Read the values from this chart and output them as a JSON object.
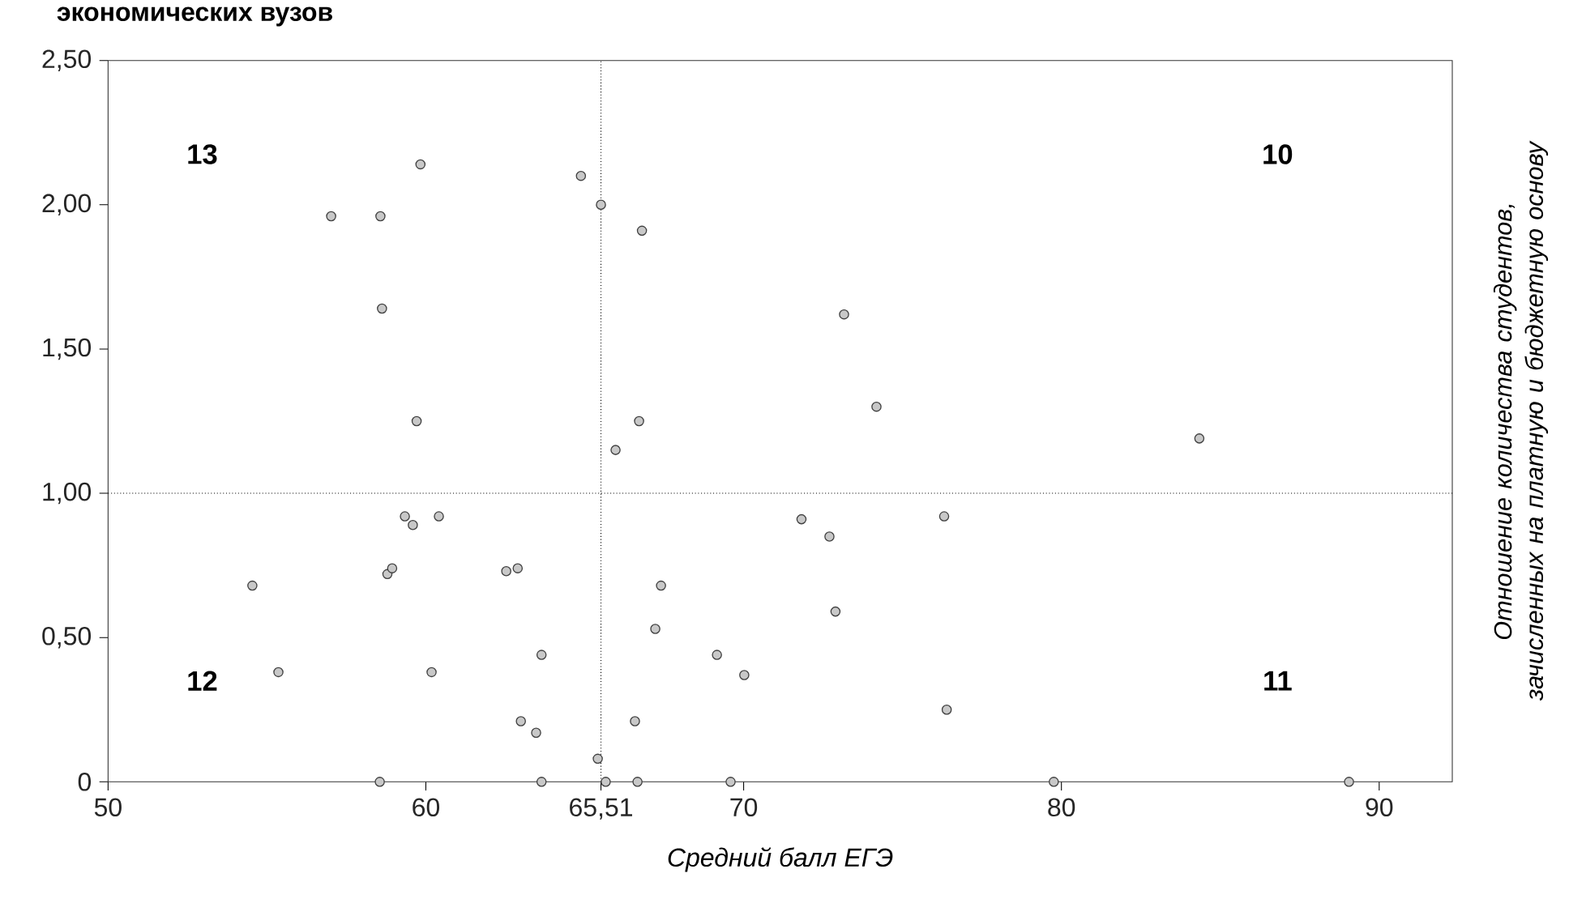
{
  "chart_data": {
    "type": "scatter",
    "title": "экономических вузов",
    "xlabel": "Средний балл ЕГЭ",
    "ylabel": "Отношение количества студентов, зачисленных на платную и бюджетную основу",
    "xlim": [
      50,
      92.3
    ],
    "ylim": [
      0,
      2.5
    ],
    "xticks": [
      50,
      60,
      {
        "value": 65.51,
        "label": "65,51"
      },
      70,
      80,
      90
    ],
    "yticks": [
      0,
      {
        "value": 0.5,
        "label": "0,50"
      },
      {
        "value": 1,
        "label": "1,00"
      },
      {
        "value": 1.5,
        "label": "1,50"
      },
      {
        "value": 2,
        "label": "2,00"
      },
      {
        "value": 2.5,
        "label": "2,50"
      }
    ],
    "marker": "circle",
    "grid": false,
    "ref_lines": [
      {
        "axis": "x",
        "value": 65.51,
        "line_style": "dotted"
      },
      {
        "axis": "y",
        "value": 1,
        "line_style": "dotted"
      }
    ],
    "annotations": [
      "13",
      "10",
      "12",
      "11"
    ],
    "series": [
      {
        "color": "#c8c8c8",
        "x": [
          59.83,
          64.88,
          65.51,
          57.02,
          58.57,
          66.8,
          58.62,
          59.71,
          66.71,
          73.16,
          74.18,
          65.97,
          59.34,
          59.59,
          60.41,
          54.54,
          58.79,
          58.94,
          62.53,
          62.89,
          67.4,
          67.22,
          55.36,
          60.18,
          63.64,
          69.16,
          70.02,
          62.99,
          63.47,
          66.58,
          65.41,
          58.55,
          63.64,
          65.66,
          66.66,
          69.59,
          84.34,
          71.82,
          72.7,
          76.31,
          72.89,
          76.39,
          79.76,
          89.05
        ],
        "values": [
          2.14,
          2.1,
          2.0,
          1.96,
          1.96,
          1.91,
          1.64,
          1.25,
          1.25,
          1.62,
          1.3,
          1.15,
          0.92,
          0.89,
          0.92,
          0.68,
          0.72,
          0.74,
          0.73,
          0.74,
          0.68,
          0.53,
          0.38,
          0.38,
          0.44,
          0.44,
          0.37,
          0.21,
          0.17,
          0.21,
          0.08,
          0,
          0,
          0,
          0,
          0,
          1.19,
          0.91,
          0.85,
          0.92,
          0.59,
          0.25,
          0,
          0
        ]
      }
    ]
  }
}
